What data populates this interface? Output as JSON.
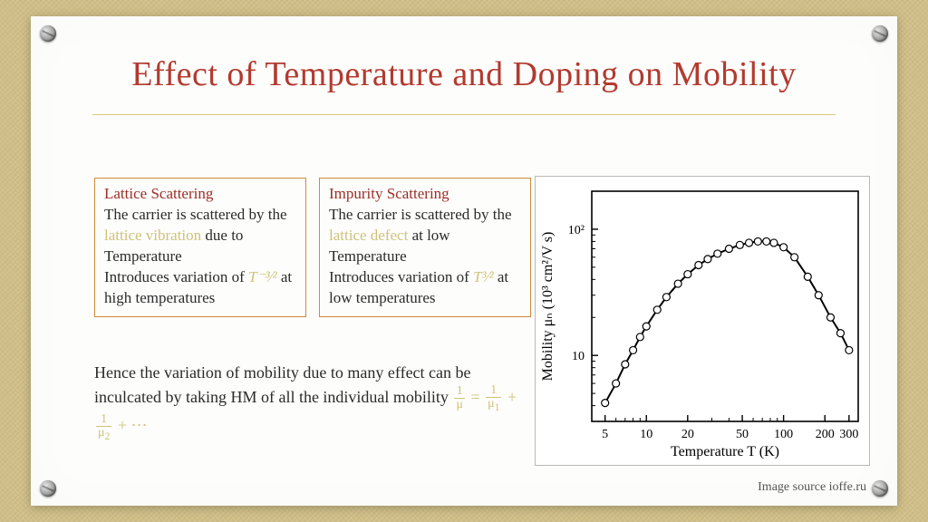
{
  "title": "Effect of Temperature and Doping on Mobility",
  "box1": {
    "title": "Lattice Scattering",
    "line1a": "The carrier is scattered by the ",
    "highlight": "lattice vibration",
    "line1b": " due to Temperature",
    "line2a": "Introduces variation of ",
    "exp": "T⁻³⁄²",
    "line2b": " at high temperatures"
  },
  "box2": {
    "title": "Impurity Scattering",
    "line1a": "The carrier is scattered by the ",
    "highlight": "lattice defect",
    "line1b": " at low Temperature",
    "line2a": "Introduces variation of ",
    "exp": "T³⁄²",
    "line2b": " at low temperatures"
  },
  "summary": {
    "text": "Hence the variation of mobility due to many effect can be inculcated by taking HM of all the individual mobility ",
    "eq_plain": "1/μ = 1/μ₁ + 1/μ₂ + ⋯"
  },
  "credit": "Image source ioffe.ru",
  "chart": {
    "type": "line-scatter-loglog",
    "xlabel": "Temperature T (K)",
    "ylabel": "Mobility μₙ (10³ cm²/V s)",
    "xlim": [
      4,
      350
    ],
    "ylim": [
      3,
      200
    ],
    "xticks": [
      5,
      10,
      20,
      50,
      100,
      200,
      300
    ],
    "yticks": [
      10,
      100
    ],
    "yticklabels": [
      "10",
      "10²"
    ],
    "background_color": "#ffffff",
    "axis_color": "#000000",
    "line_color": "#000000",
    "marker_color": "#000000",
    "marker_style": "circle-open",
    "marker_size": 4,
    "line_width": 2,
    "points": [
      [
        5,
        4.2
      ],
      [
        6,
        6.0
      ],
      [
        7,
        8.5
      ],
      [
        8,
        11
      ],
      [
        9,
        14
      ],
      [
        10,
        17
      ],
      [
        12,
        23
      ],
      [
        14,
        29
      ],
      [
        17,
        37
      ],
      [
        20,
        44
      ],
      [
        24,
        52
      ],
      [
        28,
        58
      ],
      [
        33,
        64
      ],
      [
        40,
        70
      ],
      [
        48,
        75
      ],
      [
        56,
        78
      ],
      [
        65,
        80
      ],
      [
        75,
        80
      ],
      [
        85,
        78
      ],
      [
        100,
        72
      ],
      [
        120,
        60
      ],
      [
        150,
        42
      ],
      [
        180,
        30
      ],
      [
        220,
        20
      ],
      [
        260,
        15
      ],
      [
        300,
        11
      ]
    ]
  }
}
